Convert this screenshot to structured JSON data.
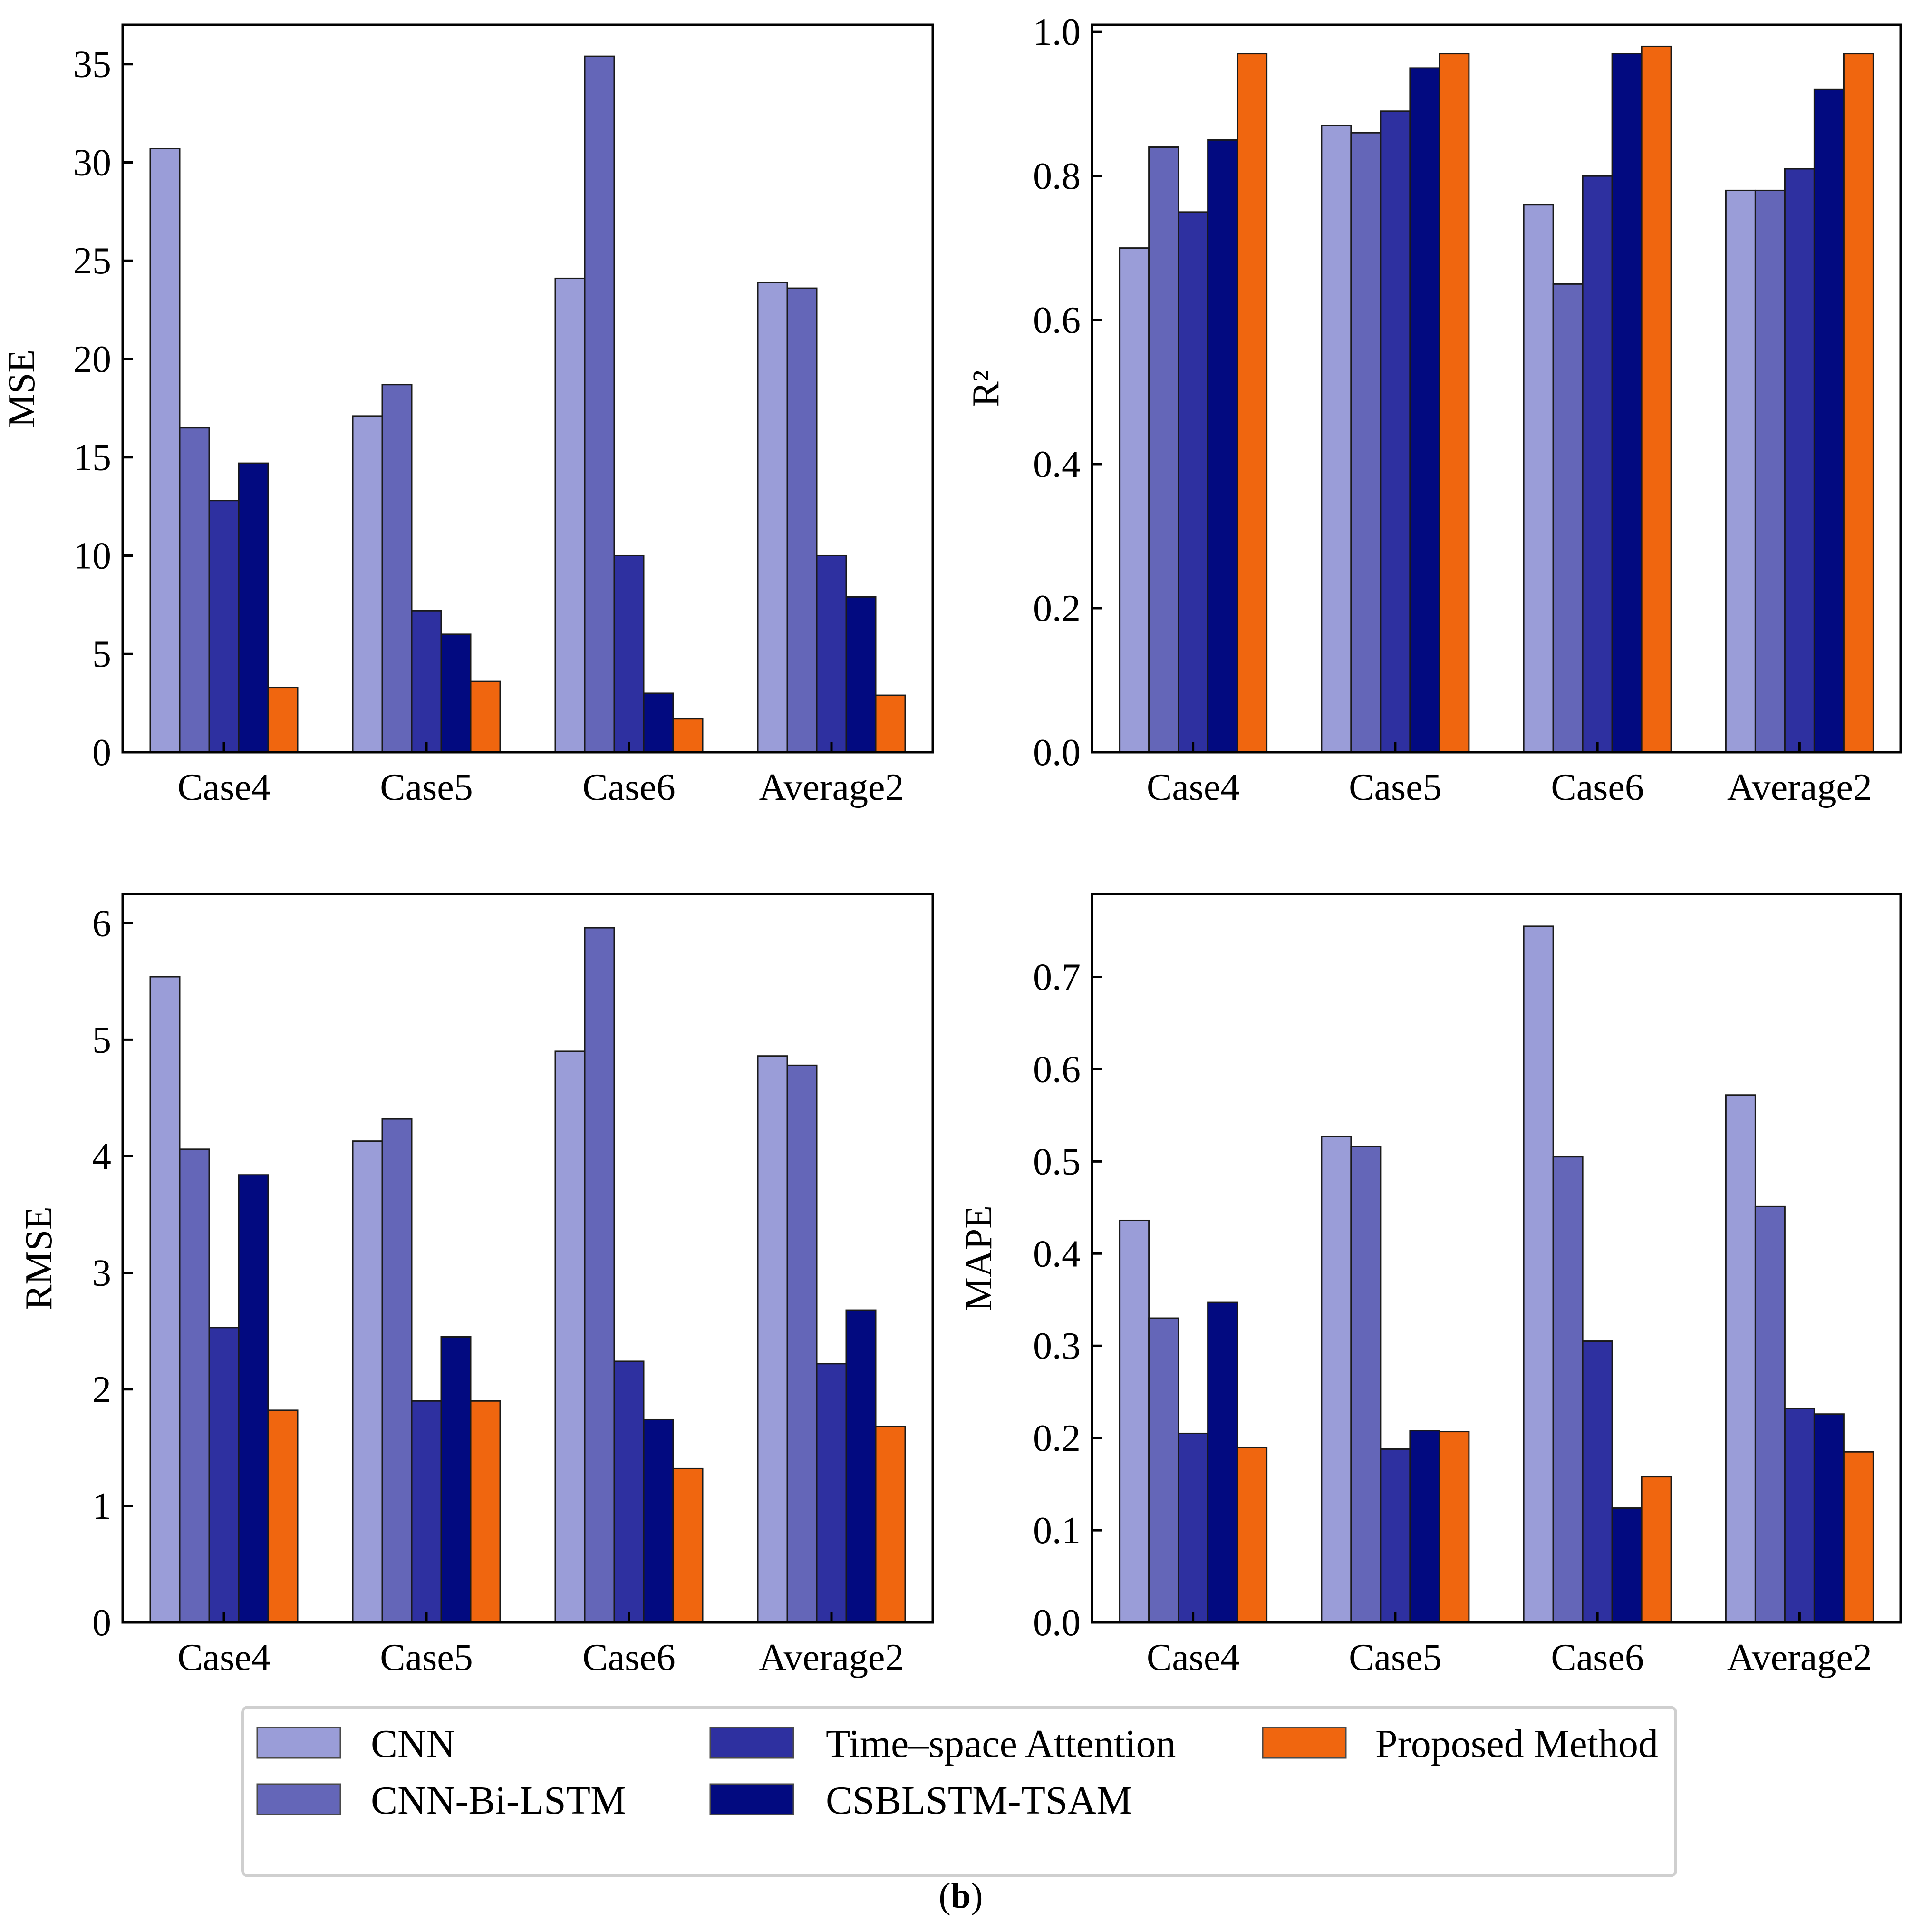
{
  "figure": {
    "caption_open": "(",
    "caption_letter": "b",
    "caption_close": ")"
  },
  "colors": {
    "CNN": "#9a9dd8",
    "CNN-Bi-LSTM": "#6466b8",
    "Time–space Attention": "#2e30a0",
    "CSBLSTM-TSAM": "#020a80",
    "Proposed Method": "#f0660f"
  },
  "legend": {
    "items": [
      "CNN",
      "CNN-Bi-LSTM",
      "Time–space Attention",
      "CSBLSTM-TSAM",
      "Proposed Method"
    ]
  },
  "chart_data": [
    {
      "type": "bar",
      "ylabel": "MSE",
      "categories": [
        "Case4",
        "Case5",
        "Case6",
        "Average2"
      ],
      "ylim": [
        0,
        37
      ],
      "yticks": [
        0,
        5,
        10,
        15,
        20,
        25,
        30,
        35
      ],
      "tick_labels": [
        "0",
        "5",
        "10",
        "15",
        "20",
        "25",
        "30",
        "35"
      ],
      "series": [
        {
          "name": "CNN",
          "values": [
            30.7,
            17.1,
            24.1,
            23.9
          ]
        },
        {
          "name": "CNN-Bi-LSTM",
          "values": [
            16.5,
            18.7,
            35.4,
            23.6
          ]
        },
        {
          "name": "Time–space Attention",
          "values": [
            12.8,
            7.2,
            10.0,
            10.0
          ]
        },
        {
          "name": "CSBLSTM-TSAM",
          "values": [
            14.7,
            6.0,
            3.0,
            7.9
          ]
        },
        {
          "name": "Proposed Method",
          "values": [
            3.3,
            3.6,
            1.7,
            2.9
          ]
        }
      ]
    },
    {
      "type": "bar",
      "ylabel": "R²",
      "categories": [
        "Case4",
        "Case5",
        "Case6",
        "Average2"
      ],
      "ylim": [
        0,
        1.01
      ],
      "yticks": [
        0.0,
        0.2,
        0.4,
        0.6,
        0.8,
        1.0
      ],
      "tick_labels": [
        "0.0",
        "0.2",
        "0.4",
        "0.6",
        "0.8",
        "1.0"
      ],
      "series": [
        {
          "name": "CNN",
          "values": [
            0.7,
            0.87,
            0.76,
            0.78
          ]
        },
        {
          "name": "CNN-Bi-LSTM",
          "values": [
            0.84,
            0.86,
            0.65,
            0.78
          ]
        },
        {
          "name": "Time–space Attention",
          "values": [
            0.75,
            0.89,
            0.8,
            0.81
          ]
        },
        {
          "name": "CSBLSTM-TSAM",
          "values": [
            0.85,
            0.95,
            0.97,
            0.92
          ]
        },
        {
          "name": "Proposed Method",
          "values": [
            0.97,
            0.97,
            0.98,
            0.97
          ]
        }
      ]
    },
    {
      "type": "bar",
      "ylabel": "RMSE",
      "categories": [
        "Case4",
        "Case5",
        "Case6",
        "Average2"
      ],
      "ylim": [
        0,
        6.25
      ],
      "yticks": [
        0,
        1,
        2,
        3,
        4,
        5,
        6
      ],
      "tick_labels": [
        "0",
        "1",
        "2",
        "3",
        "4",
        "5",
        "6"
      ],
      "series": [
        {
          "name": "CNN",
          "values": [
            5.54,
            4.13,
            4.9,
            4.86
          ]
        },
        {
          "name": "CNN-Bi-LSTM",
          "values": [
            4.06,
            4.32,
            5.96,
            4.78
          ]
        },
        {
          "name": "Time–space Attention",
          "values": [
            2.53,
            1.9,
            2.24,
            2.22
          ]
        },
        {
          "name": "CSBLSTM-TSAM",
          "values": [
            3.84,
            2.45,
            1.74,
            2.68
          ]
        },
        {
          "name": "Proposed Method",
          "values": [
            1.82,
            1.9,
            1.32,
            1.68
          ]
        }
      ]
    },
    {
      "type": "bar",
      "ylabel": "MAPE",
      "categories": [
        "Case4",
        "Case5",
        "Case6",
        "Average2"
      ],
      "ylim": [
        0,
        0.79
      ],
      "yticks": [
        0.0,
        0.1,
        0.2,
        0.3,
        0.4,
        0.5,
        0.6,
        0.7
      ],
      "tick_labels": [
        "0.0",
        "0.1",
        "0.2",
        "0.3",
        "0.4",
        "0.5",
        "0.6",
        "0.7"
      ],
      "series": [
        {
          "name": "CNN",
          "values": [
            0.436,
            0.527,
            0.755,
            0.572
          ]
        },
        {
          "name": "CNN-Bi-LSTM",
          "values": [
            0.33,
            0.516,
            0.505,
            0.451
          ]
        },
        {
          "name": "Time–space Attention",
          "values": [
            0.205,
            0.188,
            0.305,
            0.232
          ]
        },
        {
          "name": "CSBLSTM-TSAM",
          "values": [
            0.347,
            0.208,
            0.124,
            0.226
          ]
        },
        {
          "name": "Proposed Method",
          "values": [
            0.19,
            0.207,
            0.158,
            0.185
          ]
        }
      ]
    }
  ]
}
